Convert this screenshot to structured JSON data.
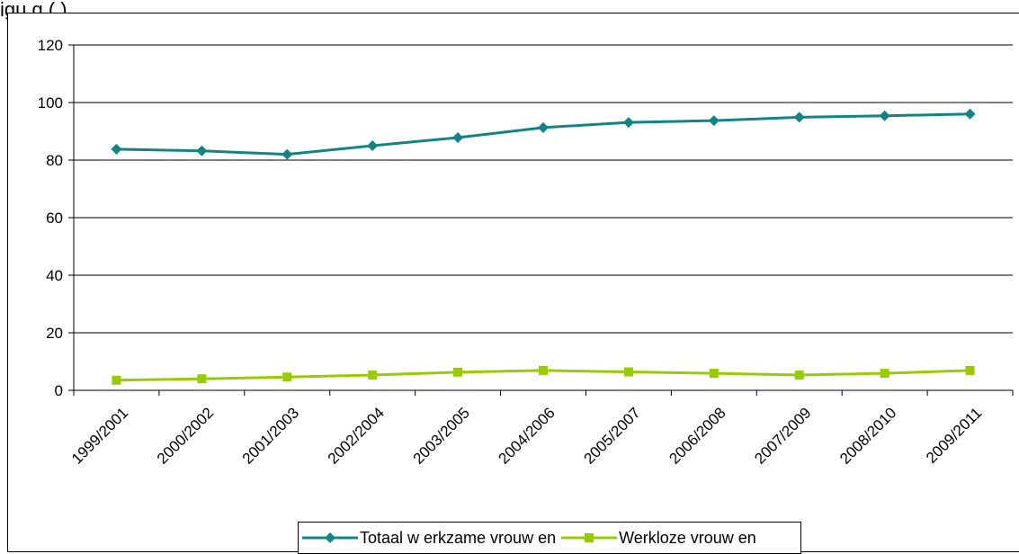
{
  "caption": "igu                                                                                                                                    g (                         )",
  "chart_data": {
    "type": "line",
    "title": "",
    "xlabel": "",
    "ylabel": "",
    "categories": [
      "1999/2001",
      "2000/2002",
      "2001/2003",
      "2002/2004",
      "2003/2005",
      "2004/2006",
      "2005/2007",
      "2006/2008",
      "2007/2009",
      "2008/2010",
      "2009/2011"
    ],
    "ylim": [
      0,
      120
    ],
    "yticks": [
      "0",
      "20",
      "40",
      "60",
      "80",
      "100",
      "120"
    ],
    "grid": true,
    "legend_position": "bottom",
    "series": [
      {
        "name": "Totaal w erkzame vrouw en",
        "color": "#138484",
        "marker": "diamond",
        "values": [
          83.8,
          83.2,
          82.0,
          85.0,
          87.8,
          91.3,
          93.1,
          93.7,
          94.9,
          95.4,
          96.0
        ]
      },
      {
        "name": "Werkloze vrouw en",
        "color": "#99CC00",
        "marker": "square",
        "values": [
          3.5,
          4.0,
          4.6,
          5.3,
          6.3,
          6.9,
          6.4,
          5.9,
          5.3,
          5.9,
          6.9
        ]
      }
    ]
  }
}
